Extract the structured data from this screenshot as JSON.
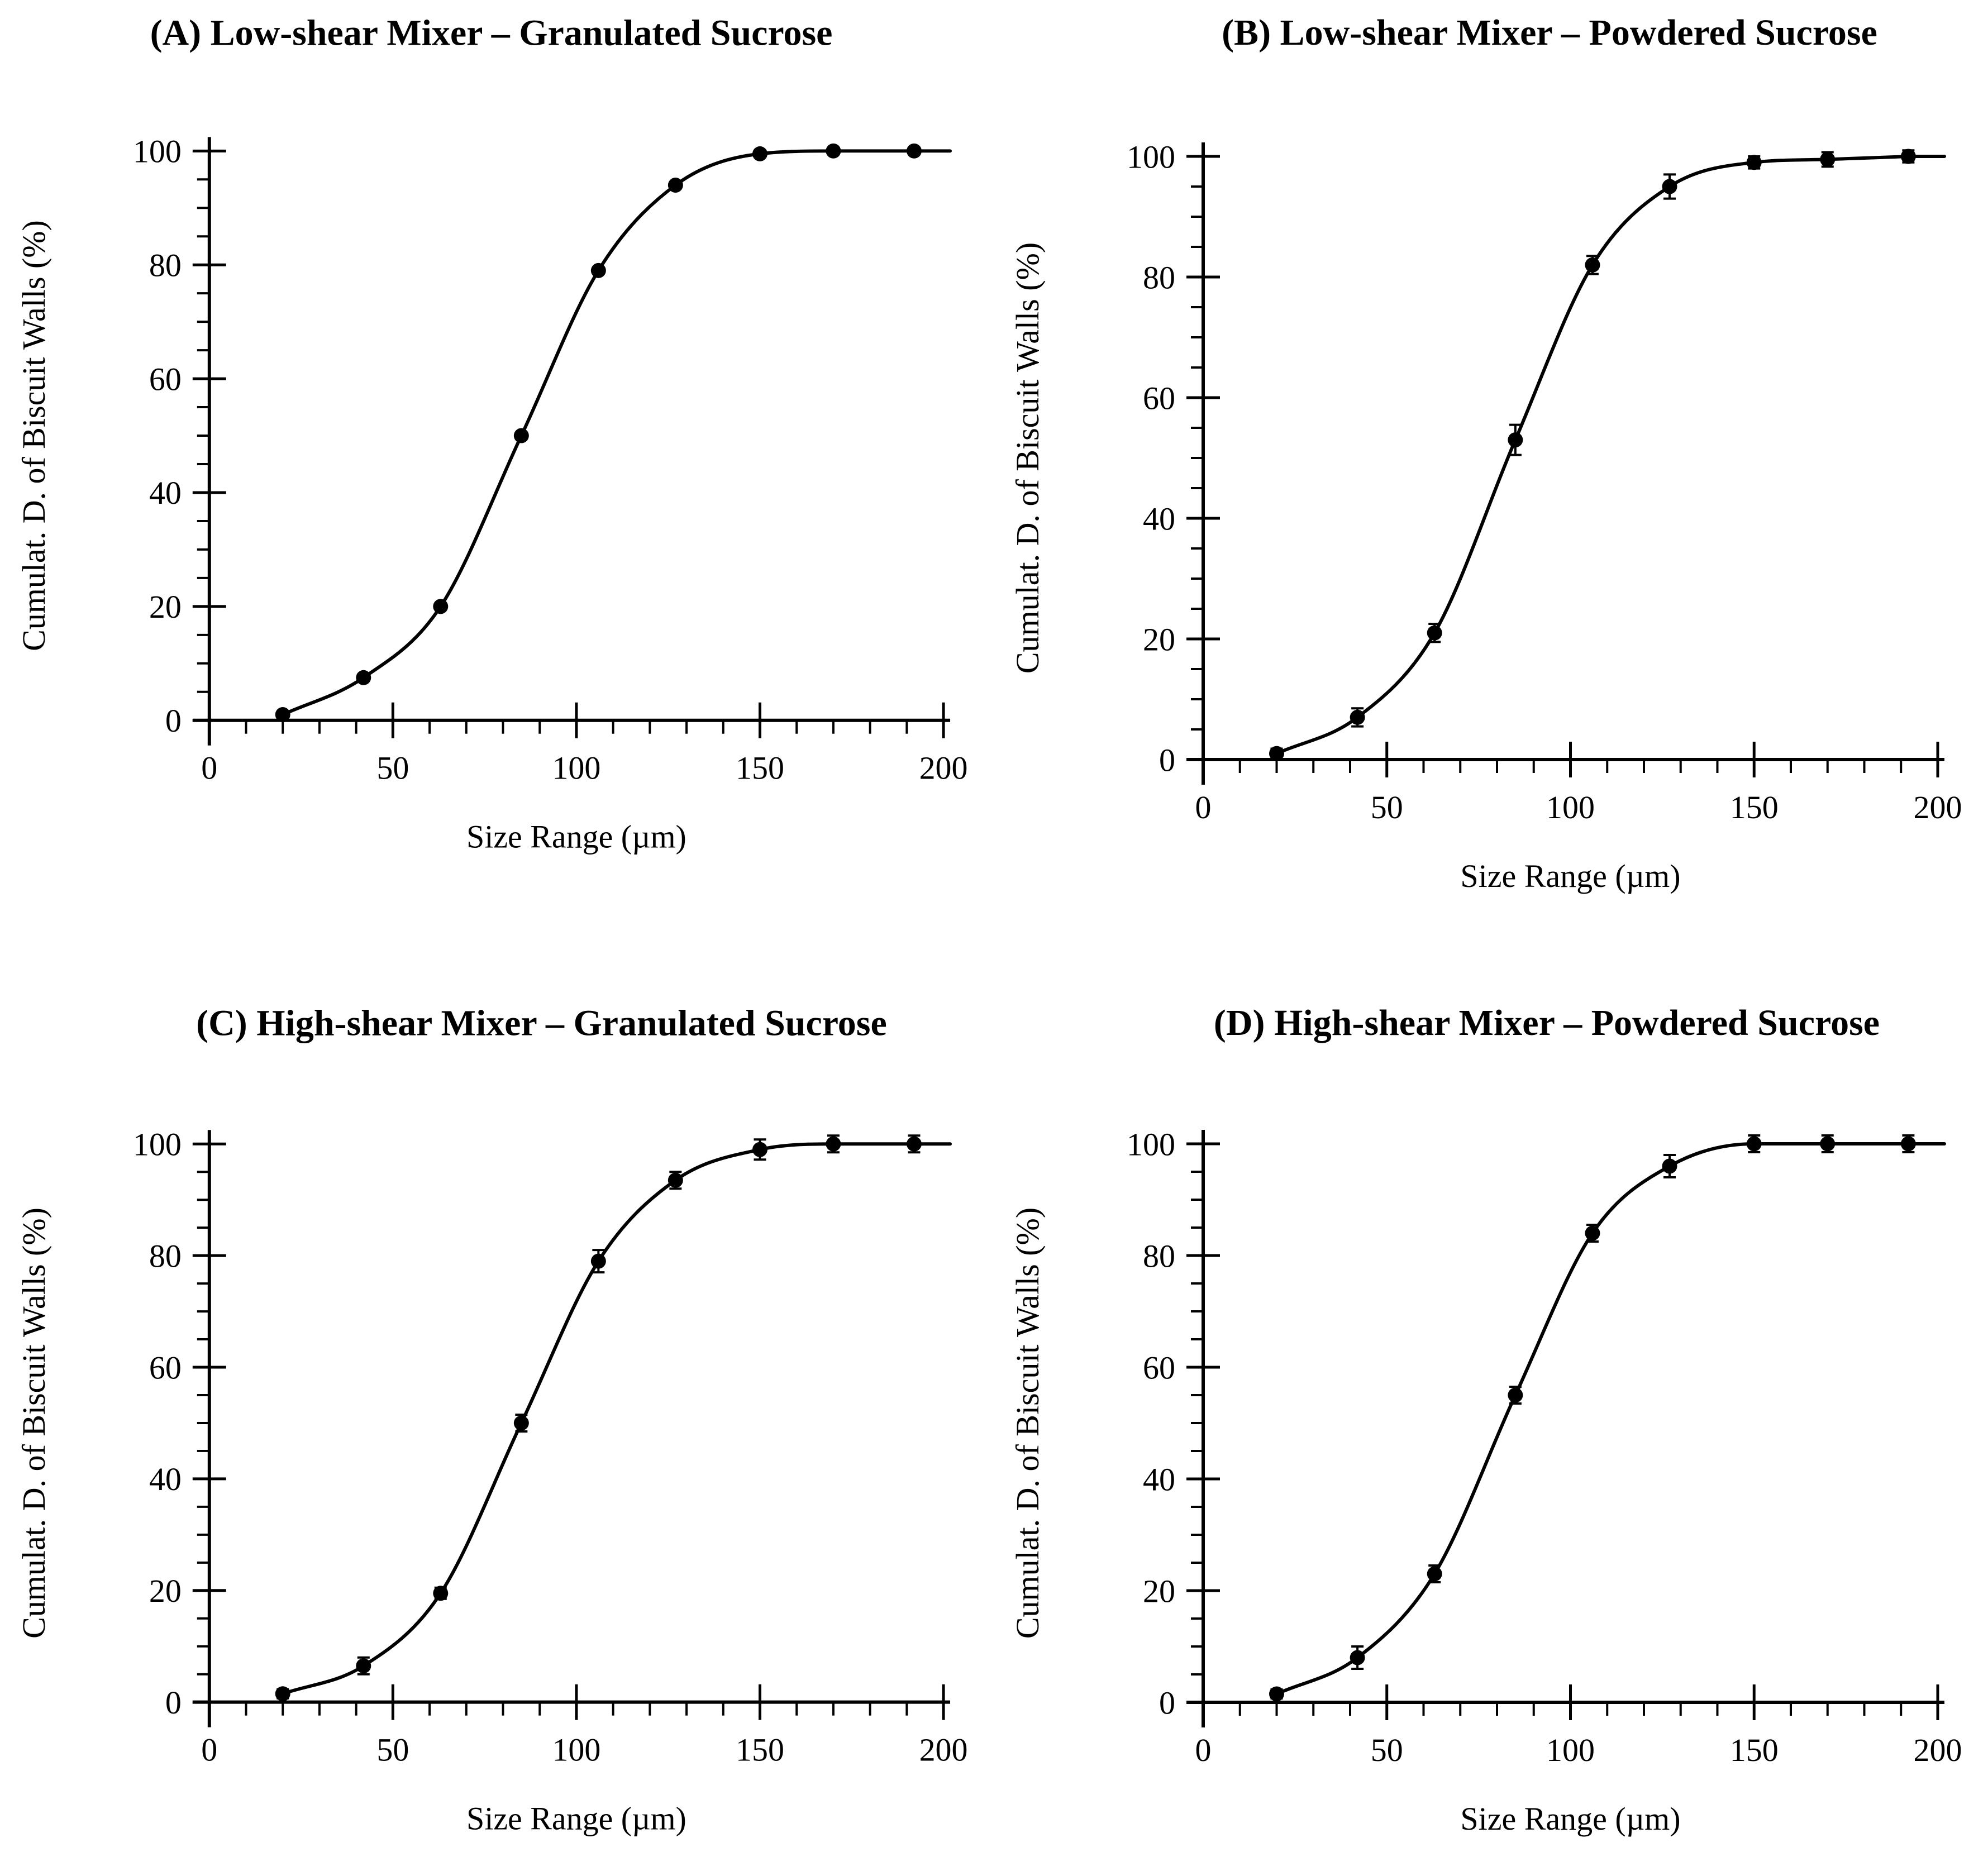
{
  "page": {
    "background": "#ffffff",
    "ink_color": "#000000"
  },
  "chart_data": [
    {
      "id": "A",
      "type": "line",
      "title": "(A) Low-shear Mixer – Granulated Sucrose",
      "xlabel": "Size Range (µm)",
      "ylabel": "Cumulat. D. of Biscuit Walls (%)",
      "x": [
        20,
        42,
        63,
        85,
        106,
        127,
        150,
        170,
        192
      ],
      "y": [
        1,
        7.5,
        20,
        50,
        79,
        94,
        99.5,
        100,
        100
      ],
      "yerr": [
        0,
        0,
        0,
        0,
        0,
        0,
        0,
        0,
        0
      ],
      "xlim": [
        0,
        200
      ],
      "ylim": [
        0,
        100
      ],
      "xticks": [
        0,
        50,
        100,
        150,
        200
      ],
      "xminor_step": 10,
      "yticks": [
        0,
        20,
        40,
        60,
        80,
        100
      ],
      "yminor_step": 5,
      "grid": "off",
      "legend": "none",
      "marker": "filled-circle",
      "line_color": "#000000"
    },
    {
      "id": "B",
      "type": "line",
      "title": "(B) Low-shear Mixer – Powdered Sucrose",
      "xlabel": "Size Range (µm)",
      "ylabel": "Cumulat. D. of Biscuit Walls (%)",
      "x": [
        20,
        42,
        63,
        85,
        106,
        127,
        150,
        170,
        192
      ],
      "y": [
        1,
        7,
        21,
        53,
        82,
        95,
        99,
        99.5,
        100
      ],
      "yerr": [
        0.8,
        1.5,
        1.5,
        2.5,
        1.5,
        2,
        1,
        1.2,
        1
      ],
      "xlim": [
        0,
        200
      ],
      "ylim": [
        0,
        100
      ],
      "xticks": [
        0,
        50,
        100,
        150,
        200
      ],
      "xminor_step": 10,
      "yticks": [
        0,
        20,
        40,
        60,
        80,
        100
      ],
      "yminor_step": 5,
      "grid": "off",
      "legend": "none",
      "marker": "filled-circle",
      "line_color": "#000000"
    },
    {
      "id": "C",
      "type": "line",
      "title": "(C) High-shear Mixer – Granulated Sucrose",
      "xlabel": "Size Range (µm)",
      "ylabel": "Cumulat. D. of Biscuit Walls (%)",
      "x": [
        20,
        42,
        63,
        85,
        106,
        127,
        150,
        170,
        192
      ],
      "y": [
        1.5,
        6.5,
        19.5,
        50,
        79,
        93.5,
        99,
        100,
        100
      ],
      "yerr": [
        0.8,
        1.5,
        1,
        1.5,
        2,
        1.5,
        1.8,
        1.5,
        1.5
      ],
      "xlim": [
        0,
        200
      ],
      "ylim": [
        0,
        100
      ],
      "xticks": [
        0,
        50,
        100,
        150,
        200
      ],
      "xminor_step": 10,
      "yticks": [
        0,
        20,
        40,
        60,
        80,
        100
      ],
      "yminor_step": 5,
      "grid": "off",
      "legend": "none",
      "marker": "filled-circle",
      "line_color": "#000000"
    },
    {
      "id": "D",
      "type": "line",
      "title": "(D) High-shear Mixer – Powdered Sucrose",
      "xlabel": "Size Range (µm)",
      "ylabel": "Cumulat. D. of Biscuit Walls (%)",
      "x": [
        20,
        42,
        63,
        85,
        106,
        127,
        150,
        170,
        192
      ],
      "y": [
        1.5,
        8,
        23,
        55,
        84,
        96,
        100,
        100,
        100
      ],
      "yerr": [
        0.8,
        2,
        1.5,
        1.5,
        1.5,
        2,
        1.5,
        1.5,
        1.5
      ],
      "xlim": [
        0,
        200
      ],
      "ylim": [
        0,
        100
      ],
      "xticks": [
        0,
        50,
        100,
        150,
        200
      ],
      "xminor_step": 10,
      "yticks": [
        0,
        20,
        40,
        60,
        80,
        100
      ],
      "yminor_step": 5,
      "grid": "off",
      "legend": "none",
      "marker": "filled-circle",
      "line_color": "#000000"
    }
  ]
}
